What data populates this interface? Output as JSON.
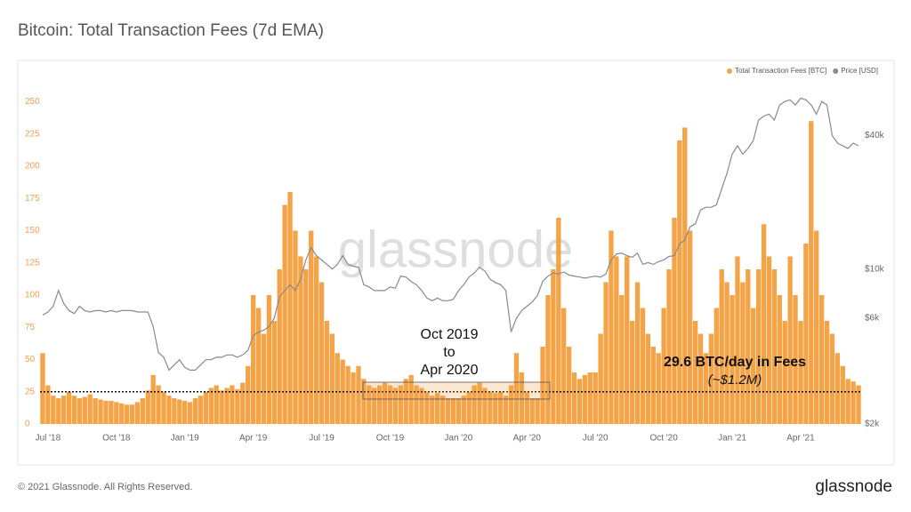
{
  "chart_data": {
    "type": "bar-line",
    "title": "Bitcoin: Total Transaction Fees (7d EMA)",
    "categories": [
      null,
      "Jul '18",
      null,
      null,
      null,
      null,
      null,
      null,
      null,
      null,
      null,
      null,
      null,
      null,
      "Oct '18",
      null,
      null,
      null,
      null,
      null,
      null,
      null,
      null,
      null,
      null,
      null,
      null,
      "Jan '19",
      null,
      null,
      null,
      null,
      null,
      null,
      null,
      null,
      null,
      null,
      null,
      null,
      "Apr '19",
      null,
      null,
      null,
      null,
      null,
      null,
      null,
      null,
      null,
      null,
      null,
      null,
      "Jul '19",
      null,
      null,
      null,
      null,
      null,
      null,
      null,
      null,
      null,
      null,
      null,
      null,
      "Oct '19",
      null,
      null,
      null,
      null,
      null,
      null,
      null,
      null,
      null,
      null,
      null,
      null,
      "Jan '20",
      null,
      null,
      null,
      null,
      null,
      null,
      null,
      null,
      null,
      null,
      null,
      null,
      "Apr '20",
      null,
      null,
      null,
      null,
      null,
      null,
      null,
      null,
      null,
      null,
      null,
      null,
      "Jul '20",
      null,
      null,
      null,
      null,
      null,
      null,
      null,
      null,
      null,
      null,
      null,
      null,
      "Oct '20",
      null,
      null,
      null,
      null,
      null,
      null,
      null,
      null,
      null,
      null,
      null,
      null,
      "Jan '21",
      null,
      null,
      null,
      null,
      null,
      null,
      null,
      null,
      null,
      null,
      null,
      null,
      "Apr '21",
      null,
      null,
      null,
      null,
      null,
      null,
      null,
      null,
      null,
      null,
      null
    ],
    "series": [
      {
        "name": "Total Transaction Fees [BTC]",
        "color": "#f5a347",
        "type": "bar",
        "values": [
          55,
          30,
          22,
          20,
          22,
          25,
          22,
          20,
          21,
          23,
          20,
          19,
          18,
          18,
          17,
          16,
          15,
          15,
          17,
          20,
          26,
          38,
          30,
          25,
          22,
          20,
          19,
          18,
          17,
          20,
          22,
          25,
          28,
          30,
          26,
          28,
          30,
          27,
          32,
          45,
          100,
          90,
          70,
          100,
          80,
          120,
          170,
          180,
          150,
          130,
          120,
          150,
          130,
          110,
          80,
          70,
          55,
          50,
          45,
          40,
          45,
          35,
          30,
          28,
          30,
          32,
          30,
          28,
          30,
          35,
          38,
          30,
          28,
          25,
          22,
          24,
          22,
          20,
          20,
          20,
          22,
          25,
          30,
          32,
          28,
          25,
          24,
          25,
          22,
          30,
          55,
          40,
          25,
          20,
          20,
          60,
          100,
          120,
          160,
          90,
          60,
          40,
          35,
          38,
          40,
          40,
          70,
          110,
          150,
          130,
          100,
          130,
          80,
          110,
          90,
          70,
          60,
          55,
          90,
          120,
          160,
          220,
          230,
          150,
          80,
          70,
          55,
          70,
          90,
          120,
          110,
          100,
          130,
          110,
          120,
          90,
          120,
          155,
          130,
          120,
          100,
          80,
          130,
          100,
          80,
          140,
          235,
          150,
          100,
          80,
          70,
          55,
          45,
          35,
          33,
          30
        ]
      },
      {
        "name": "Price [USD]",
        "color": "#8a8a8a",
        "type": "line",
        "axis": "y2",
        "values": [
          6200,
          6400,
          6800,
          8000,
          7000,
          6500,
          6300,
          6800,
          6500,
          6400,
          6500,
          6500,
          6400,
          6500,
          6400,
          6500,
          6500,
          6500,
          6400,
          6400,
          6400,
          5500,
          4200,
          4000,
          3500,
          3700,
          3900,
          3600,
          3500,
          3500,
          3700,
          3900,
          3900,
          4000,
          4000,
          4100,
          4100,
          4000,
          4100,
          4300,
          5000,
          5200,
          5300,
          5500,
          6000,
          7500,
          8000,
          8500,
          8000,
          9000,
          11000,
          12500,
          11500,
          11000,
          10500,
          10000,
          10500,
          11500,
          10500,
          10300,
          10200,
          8500,
          8300,
          8000,
          8000,
          8000,
          8300,
          8200,
          9300,
          9200,
          8800,
          8500,
          8000,
          7400,
          7200,
          7400,
          7200,
          7200,
          7300,
          8000,
          8500,
          9200,
          9600,
          10200,
          9800,
          9000,
          8700,
          8500,
          8000,
          5200,
          6000,
          6500,
          6800,
          7100,
          7600,
          8800,
          9300,
          9600,
          9500,
          9700,
          9400,
          9300,
          9200,
          9100,
          9200,
          9300,
          9200,
          9500,
          11000,
          11700,
          11800,
          11500,
          11300,
          11800,
          10500,
          10700,
          10500,
          10800,
          11000,
          11400,
          11500,
          13000,
          13500,
          15500,
          16000,
          18500,
          19000,
          19000,
          19500,
          23000,
          27000,
          33000,
          36000,
          33000,
          35000,
          38000,
          47000,
          49000,
          50000,
          47000,
          55000,
          57000,
          58000,
          55000,
          59000,
          58000,
          55000,
          50000,
          57000,
          55000,
          40000,
          37000,
          36000,
          35000,
          37000,
          36000
        ]
      }
    ],
    "ylim": [
      0,
      260
    ],
    "yticks": [
      0,
      25,
      50,
      75,
      100,
      125,
      150,
      175,
      200,
      225,
      250
    ],
    "y2lim": [
      2000,
      65000
    ],
    "y2_log": true,
    "y2ticks": [
      {
        "value": 2000,
        "label": "$2k"
      },
      {
        "value": 6000,
        "label": "$6k"
      },
      {
        "value": 10000,
        "label": "$10k"
      },
      {
        "value": 40000,
        "label": "$40k"
      }
    ],
    "reference_line": 25,
    "annotation_period": [
      "Oct 2019",
      "to",
      "Apr 2020"
    ],
    "annotation_fees": [
      "29.6 BTC/day in Fees",
      "(~$1.2M)"
    ],
    "legend": "top-right",
    "watermark": "glassnode"
  },
  "footer": {
    "copyright": "© 2021 Glassnode. All Rights Reserved.",
    "logo": "glassnode"
  }
}
